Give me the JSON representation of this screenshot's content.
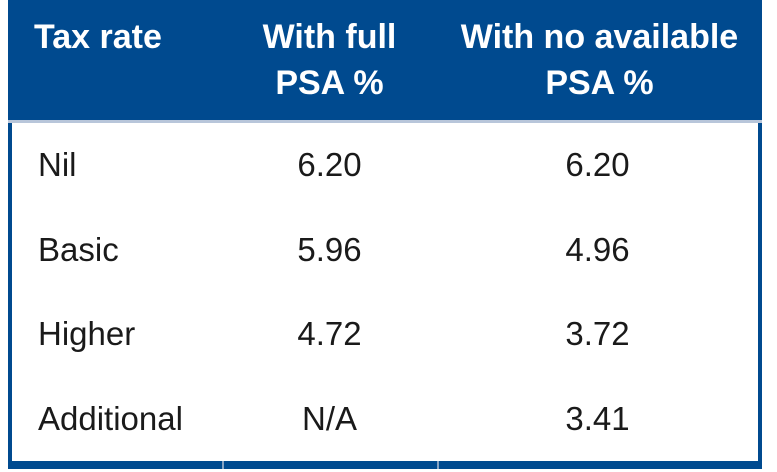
{
  "table": {
    "header": {
      "col1": {
        "line1": "Tax rate",
        "line2": ""
      },
      "col2": {
        "line1": "With full",
        "line2": "PSA %"
      },
      "col3": {
        "line1": "With no available",
        "line2": "PSA %"
      }
    },
    "rows": [
      {
        "cells": [
          "Nil",
          "6.20",
          "6.20"
        ]
      },
      {
        "cells": [
          "Basic",
          "5.96",
          "4.96"
        ]
      },
      {
        "cells": [
          "Higher",
          "4.72",
          "3.72"
        ]
      },
      {
        "cells": [
          "Additional",
          "N/A",
          "3.41"
        ]
      }
    ],
    "colors": {
      "header_bg": "#004a8f",
      "header_text": "#ffffff",
      "body_text": "#1a1a1a",
      "border": "#004a8f",
      "separator_line": "#b8c6da"
    }
  },
  "chart_data": {
    "type": "table",
    "title": "",
    "columns": [
      "Tax rate",
      "With full PSA %",
      "With no available PSA %"
    ],
    "categories": [
      "Nil",
      "Basic",
      "Higher",
      "Additional"
    ],
    "series": [
      {
        "name": "With full PSA %",
        "values": [
          6.2,
          5.96,
          4.72,
          null
        ]
      },
      {
        "name": "With no available PSA %",
        "values": [
          6.2,
          4.96,
          3.72,
          3.41
        ]
      }
    ],
    "notes": "N/A shown for Additional rate under With full PSA %"
  }
}
